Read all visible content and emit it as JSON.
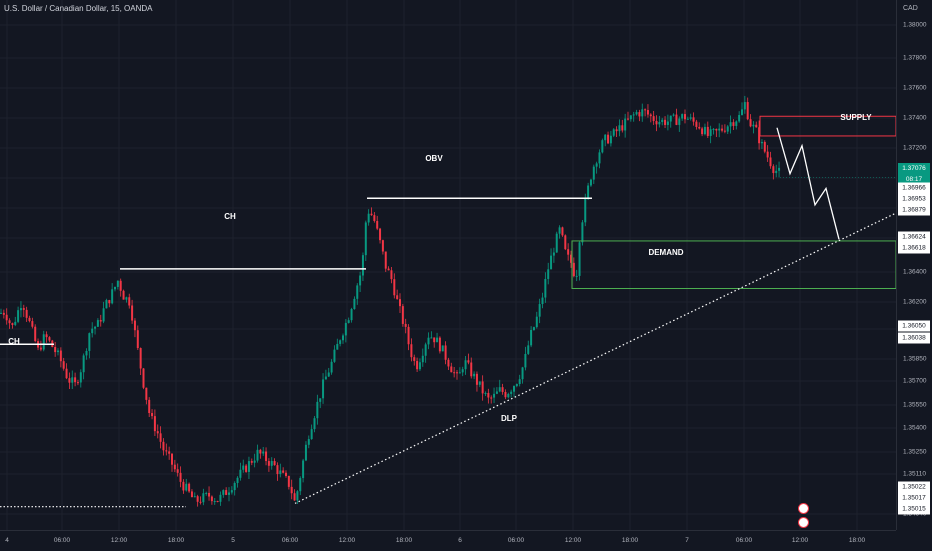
{
  "header": {
    "title": "U.S. Dollar / Canadian Dollar, 15, OANDA",
    "currency": "CAD"
  },
  "price_scale": {
    "ticks": [
      "1.38000",
      "1.37800",
      "1.37600",
      "1.37400",
      "1.37200",
      "1.37000",
      "1.36800",
      "1.36600",
      "1.36400",
      "1.36200",
      "1.36000",
      "1.35850",
      "1.35700",
      "1.35550",
      "1.35400",
      "1.35250",
      "1.35110",
      "1.34940"
    ],
    "boxes": [
      {
        "value": "1.37076",
        "sub": "08:17",
        "current": true
      },
      {
        "value": "1.36966"
      },
      {
        "value": "1.36953"
      },
      {
        "value": "1.36879"
      },
      {
        "value": "1.36624"
      },
      {
        "value": "1.36618"
      },
      {
        "value": "1.36050"
      },
      {
        "value": "1.36038"
      },
      {
        "value": "1.35022"
      },
      {
        "value": "1.35017"
      },
      {
        "value": "1.35015"
      }
    ]
  },
  "time_scale": [
    "4",
    "06:00",
    "12:00",
    "18:00",
    "5",
    "06:00",
    "12:00",
    "18:00",
    "6",
    "06:00",
    "12:00",
    "18:00",
    "7",
    "06:00",
    "12:00",
    "18:00"
  ],
  "annotations": {
    "ch1": "CH",
    "ch2": "CH",
    "obv": "OBV",
    "supply": "SUPPLY",
    "demand": "DEMAND",
    "dlp": "DLP"
  },
  "colors": {
    "background": "#131722",
    "up": "#089981",
    "down": "#f23645",
    "supply": "#f23645",
    "demand": "#4caf50",
    "grid": "#1e222d"
  },
  "chart_data": {
    "type": "candlestick",
    "symbol": "USDCAD",
    "timeframe": "15",
    "ylim": [
      1.3494,
      1.3811
    ],
    "path": [
      [
        0,
        1.3625
      ],
      [
        5,
        1.3626
      ],
      [
        12,
        1.3616
      ],
      [
        22,
        1.3633
      ],
      [
        30,
        1.3618
      ],
      [
        38,
        1.3602
      ],
      [
        45,
        1.3611
      ],
      [
        52,
        1.3605
      ],
      [
        60,
        1.3597
      ],
      [
        68,
        1.3585
      ],
      [
        75,
        1.3581
      ],
      [
        82,
        1.3593
      ],
      [
        90,
        1.3615
      ],
      [
        98,
        1.3618
      ],
      [
        105,
        1.3629
      ],
      [
        112,
        1.3637
      ],
      [
        118,
        1.3645
      ],
      [
        124,
        1.3635
      ],
      [
        130,
        1.3632
      ],
      [
        137,
        1.3605
      ],
      [
        143,
        1.3584
      ],
      [
        150,
        1.3562
      ],
      [
        157,
        1.3553
      ],
      [
        164,
        1.3541
      ],
      [
        172,
        1.3533
      ],
      [
        180,
        1.3523
      ],
      [
        188,
        1.3516
      ],
      [
        195,
        1.351
      ],
      [
        202,
        1.3512
      ],
      [
        210,
        1.3514
      ],
      [
        218,
        1.3511
      ],
      [
        226,
        1.3516
      ],
      [
        234,
        1.3522
      ],
      [
        242,
        1.3528
      ],
      [
        250,
        1.3534
      ],
      [
        258,
        1.354
      ],
      [
        266,
        1.3536
      ],
      [
        274,
        1.3532
      ],
      [
        282,
        1.3526
      ],
      [
        290,
        1.352
      ],
      [
        295,
        1.3509
      ],
      [
        300,
        1.3525
      ],
      [
        308,
        1.355
      ],
      [
        316,
        1.3567
      ],
      [
        324,
        1.3583
      ],
      [
        332,
        1.3595
      ],
      [
        340,
        1.361
      ],
      [
        348,
        1.3622
      ],
      [
        356,
        1.364
      ],
      [
        362,
        1.3652
      ],
      [
        366,
        1.3682
      ],
      [
        369,
        1.3688
      ],
      [
        374,
        1.3682
      ],
      [
        380,
        1.3668
      ],
      [
        386,
        1.3653
      ],
      [
        392,
        1.3645
      ],
      [
        398,
        1.363
      ],
      [
        404,
        1.3618
      ],
      [
        410,
        1.3603
      ],
      [
        416,
        1.3592
      ],
      [
        422,
        1.3601
      ],
      [
        428,
        1.3612
      ],
      [
        434,
        1.361
      ],
      [
        440,
        1.3605
      ],
      [
        446,
        1.3598
      ],
      [
        452,
        1.3591
      ],
      [
        458,
        1.3584
      ],
      [
        464,
        1.3596
      ],
      [
        470,
        1.359
      ],
      [
        476,
        1.3584
      ],
      [
        482,
        1.3578
      ],
      [
        488,
        1.3572
      ],
      [
        494,
        1.3574
      ],
      [
        500,
        1.3578
      ],
      [
        506,
        1.3576
      ],
      [
        512,
        1.358
      ],
      [
        518,
        1.3585
      ],
      [
        524,
        1.3594
      ],
      [
        530,
        1.361
      ],
      [
        536,
        1.362
      ],
      [
        542,
        1.3634
      ],
      [
        548,
        1.3652
      ],
      [
        554,
        1.3665
      ],
      [
        560,
        1.3676
      ],
      [
        566,
        1.366
      ],
      [
        572,
        1.3655
      ],
      [
        576,
        1.3645
      ],
      [
        580,
        1.3675
      ],
      [
        586,
        1.3695
      ],
      [
        592,
        1.3712
      ],
      [
        598,
        1.3722
      ],
      [
        604,
        1.373
      ],
      [
        612,
        1.3733
      ],
      [
        620,
        1.3738
      ],
      [
        628,
        1.3742
      ],
      [
        636,
        1.3747
      ],
      [
        644,
        1.3748
      ],
      [
        652,
        1.3744
      ],
      [
        660,
        1.3742
      ],
      [
        668,
        1.3742
      ],
      [
        676,
        1.3743
      ],
      [
        684,
        1.3745
      ],
      [
        692,
        1.3742
      ],
      [
        700,
        1.3739
      ],
      [
        708,
        1.3733
      ],
      [
        716,
        1.3735
      ],
      [
        724,
        1.3738
      ],
      [
        732,
        1.3742
      ],
      [
        740,
        1.3745
      ],
      [
        745,
        1.3753
      ],
      [
        750,
        1.3741
      ],
      [
        756,
        1.3736
      ],
      [
        762,
        1.3727
      ],
      [
        768,
        1.372
      ],
      [
        774,
        1.3713
      ],
      [
        780,
        1.371
      ]
    ],
    "levels": [
      {
        "label": "CH",
        "price": 1.3606
      },
      {
        "label": "CH",
        "price": 1.3652
      },
      {
        "label": "OBV",
        "price": 1.3695
      },
      {
        "label": "SUPPLY",
        "from": 1.3733,
        "to": 1.3745
      },
      {
        "label": "DEMAND",
        "from": 1.364,
        "to": 1.3669
      }
    ],
    "forecast": [
      1.3738,
      1.371,
      1.3727,
      1.3691,
      1.3701,
      1.367
    ],
    "trendline": {
      "label": "DLP",
      "from": 1.3509,
      "to": 1.3686
    },
    "last_price": 1.37076
  }
}
